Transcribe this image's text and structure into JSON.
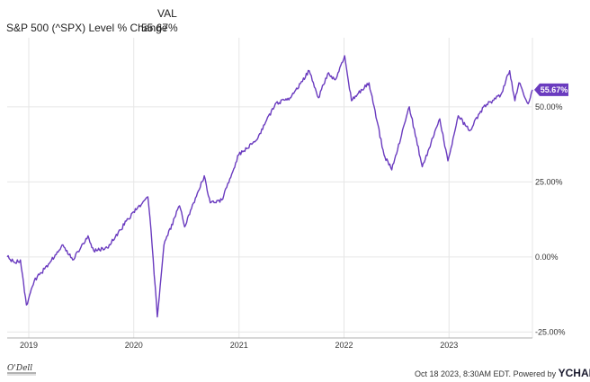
{
  "header": {
    "col_label": "VAL",
    "series_label": "S&P 500 (^SPX) Level % Change",
    "series_value": "55.67%"
  },
  "footer": {
    "timestamp": "Oct 18 2023, 8:30AM EDT.",
    "powered_by": "Powered by",
    "brand": "YCHARTS",
    "logo_text": "O'Dell"
  },
  "colors": {
    "series": "#6a3bbf",
    "grid": "#e6e6e6",
    "badge_bg": "#6a3bbf",
    "badge_text": "#ffffff"
  },
  "chart_data": {
    "type": "line",
    "title": "",
    "xlabel": "",
    "ylabel": "",
    "ylim": [
      -0.27,
      0.73
    ],
    "y_ticks": [
      -0.25,
      0,
      0.25,
      0.5
    ],
    "y_tick_labels": [
      "-25.00%",
      "0.00%",
      "25.00%",
      "50.00%"
    ],
    "x_range": [
      "2018-10-18",
      "2023-10-18"
    ],
    "x_ticks": [
      "2019-01-01",
      "2020-01-01",
      "2021-01-01",
      "2022-01-01",
      "2023-01-01"
    ],
    "x_tick_labels": [
      "2019",
      "2020",
      "2021",
      "2022",
      "2023"
    ],
    "grid": true,
    "last_value_label": "55.67%",
    "series": [
      {
        "name": "S&P 500 (^SPX) Level % Change",
        "x": [
          "2018-10-18",
          "2018-11-15",
          "2018-12-03",
          "2018-12-24",
          "2019-01-20",
          "2019-02-25",
          "2019-04-30",
          "2019-06-03",
          "2019-07-26",
          "2019-08-15",
          "2019-10-01",
          "2019-11-15",
          "2019-12-31",
          "2020-02-19",
          "2020-03-01",
          "2020-03-23",
          "2020-04-15",
          "2020-06-08",
          "2020-06-26",
          "2020-09-02",
          "2020-09-23",
          "2020-11-02",
          "2020-12-31",
          "2021-03-04",
          "2021-05-07",
          "2021-06-30",
          "2021-09-02",
          "2021-10-04",
          "2021-11-05",
          "2021-12-01",
          "2022-01-03",
          "2022-01-27",
          "2022-03-29",
          "2022-05-20",
          "2022-06-16",
          "2022-08-16",
          "2022-09-30",
          "2022-11-30",
          "2022-12-28",
          "2023-02-02",
          "2023-03-13",
          "2023-05-01",
          "2023-06-30",
          "2023-07-31",
          "2023-08-18",
          "2023-09-01",
          "2023-10-03",
          "2023-10-18"
        ],
        "y": [
          0.0,
          -0.02,
          -0.01,
          -0.16,
          -0.08,
          -0.04,
          0.04,
          -0.01,
          0.07,
          0.02,
          0.03,
          0.09,
          0.15,
          0.2,
          0.09,
          -0.2,
          0.04,
          0.17,
          0.1,
          0.27,
          0.18,
          0.19,
          0.34,
          0.39,
          0.51,
          0.53,
          0.62,
          0.53,
          0.61,
          0.59,
          0.67,
          0.52,
          0.58,
          0.34,
          0.29,
          0.5,
          0.3,
          0.46,
          0.32,
          0.47,
          0.42,
          0.5,
          0.54,
          0.62,
          0.52,
          0.58,
          0.51,
          0.5567
        ]
      }
    ]
  }
}
